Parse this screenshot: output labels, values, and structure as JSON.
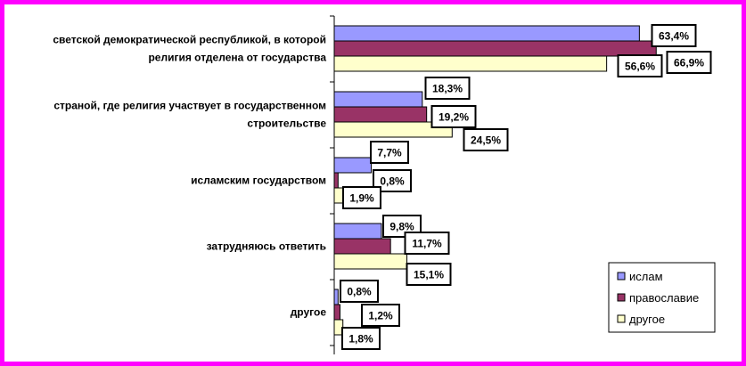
{
  "chart_data": {
    "type": "bar",
    "orientation": "horizontal",
    "categories": [
      [
        "светской демократической республикой, в которой",
        "религия отделена от государства"
      ],
      [
        "страной, где религия участвует в государственном",
        "строительстве"
      ],
      [
        "исламским государством"
      ],
      [
        "затрудняюсь ответить"
      ],
      [
        "другое"
      ]
    ],
    "series": [
      {
        "name": "ислам",
        "color": "#9999ff",
        "values": [
          63.4,
          18.3,
          7.7,
          9.8,
          0.8
        ],
        "labels": [
          "63,4%",
          "18,3%",
          "7,7%",
          "9,8%",
          "0,8%"
        ]
      },
      {
        "name": "православие",
        "color": "#993366",
        "values": [
          66.9,
          19.2,
          0.8,
          11.7,
          1.2
        ],
        "labels": [
          "66,9%",
          "19,2%",
          "0,8%",
          "11,7%",
          "1,2%"
        ]
      },
      {
        "name": "другое",
        "color": "#ffffcc",
        "values": [
          56.6,
          24.5,
          1.9,
          15.1,
          1.8
        ],
        "labels": [
          "56,6%",
          "24,5%",
          "1,9%",
          "15,1%",
          "1,8%"
        ]
      }
    ],
    "xlim": [
      0,
      70
    ],
    "grid": false,
    "legend_position": "bottom-right"
  }
}
